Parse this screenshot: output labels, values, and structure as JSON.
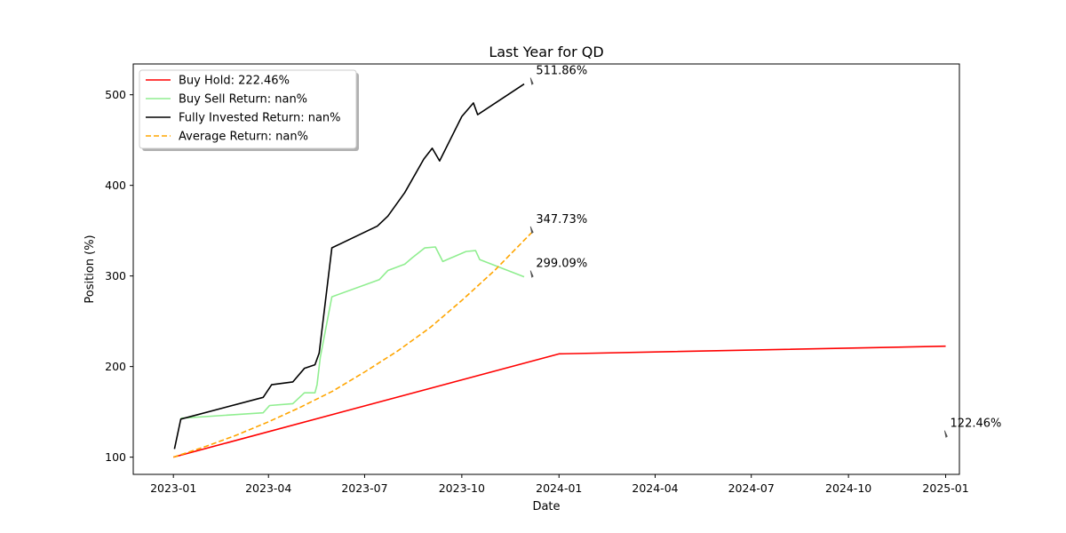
{
  "chart_data": {
    "type": "line",
    "title": "Last Year for QD",
    "xlabel": "Date",
    "ylabel": "Position (%)",
    "xlim": [
      "2022-11-24",
      "2025-01-14"
    ],
    "ylim": [
      81,
      534
    ],
    "x_ticks": [
      "2023-01",
      "2023-04",
      "2023-07",
      "2023-10",
      "2024-01",
      "2024-04",
      "2024-07",
      "2024-10",
      "2025-01"
    ],
    "y_ticks": [
      100,
      200,
      300,
      400,
      500
    ],
    "grid": false,
    "legend": {
      "placement": "top-left",
      "shadow": true
    },
    "series": [
      {
        "name": "Buy Hold: 222.46%",
        "color": "#ff0000",
        "dash": "solid",
        "points": [
          [
            "2023-01-01",
            100
          ],
          [
            "2024-01-01",
            214
          ],
          [
            "2025-01-01",
            222.46
          ]
        ]
      },
      {
        "name": "Buy Sell Return: nan%",
        "color": "#90ee90",
        "dash": "solid",
        "points": [
          [
            "2023-01-08",
            143
          ],
          [
            "2023-03-27",
            149
          ],
          [
            "2023-04-02",
            157
          ],
          [
            "2023-04-24",
            159
          ],
          [
            "2023-05-05",
            171
          ],
          [
            "2023-05-15",
            171
          ],
          [
            "2023-05-17",
            180
          ],
          [
            "2023-05-20",
            210
          ],
          [
            "2023-05-31",
            277
          ],
          [
            "2023-07-15",
            296
          ],
          [
            "2023-07-23",
            306
          ],
          [
            "2023-08-08",
            313
          ],
          [
            "2023-08-15",
            320
          ],
          [
            "2023-08-27",
            331
          ],
          [
            "2023-09-06",
            332
          ],
          [
            "2023-09-13",
            316
          ],
          [
            "2023-10-05",
            327
          ],
          [
            "2023-10-14",
            328
          ],
          [
            "2023-10-18",
            318
          ],
          [
            "2023-11-29",
            299.09
          ]
        ]
      },
      {
        "name": "Fully Invested Return: nan%",
        "color": "#000000",
        "dash": "solid",
        "points": [
          [
            "2023-01-02",
            109
          ],
          [
            "2023-01-08",
            142
          ],
          [
            "2023-03-27",
            166
          ],
          [
            "2023-04-04",
            180
          ],
          [
            "2023-04-24",
            183
          ],
          [
            "2023-05-05",
            198
          ],
          [
            "2023-05-15",
            202
          ],
          [
            "2023-05-19",
            215
          ],
          [
            "2023-05-31",
            331
          ],
          [
            "2023-07-13",
            355
          ],
          [
            "2023-07-23",
            366
          ],
          [
            "2023-08-08",
            392
          ],
          [
            "2023-08-26",
            429
          ],
          [
            "2023-09-03",
            441
          ],
          [
            "2023-09-10",
            427
          ],
          [
            "2023-10-01",
            476
          ],
          [
            "2023-10-12",
            491
          ],
          [
            "2023-10-16",
            478
          ],
          [
            "2023-11-29",
            511.86
          ]
        ]
      },
      {
        "name": "Average Return: nan%",
        "color": "#ffa500",
        "dash": "dashed",
        "points": [
          [
            "2023-01-01",
            100
          ],
          [
            "2023-02-01",
            112
          ],
          [
            "2023-03-01",
            124
          ],
          [
            "2023-04-01",
            139
          ],
          [
            "2023-05-01",
            155
          ],
          [
            "2023-06-01",
            173
          ],
          [
            "2023-07-01",
            194
          ],
          [
            "2023-08-01",
            217
          ],
          [
            "2023-09-01",
            243
          ],
          [
            "2023-10-01",
            273
          ],
          [
            "2023-11-01",
            306
          ],
          [
            "2023-12-06",
            347.73
          ]
        ]
      }
    ],
    "annotations": [
      {
        "text": "511.86%",
        "x": "2023-12-06",
        "y": 511.86
      },
      {
        "text": "347.73%",
        "x": "2023-12-06",
        "y": 347.73
      },
      {
        "text": "299.09%",
        "x": "2023-12-06",
        "y": 299.09
      },
      {
        "text": "122.46%",
        "x": "2025-01-01",
        "y": 122.46
      }
    ]
  }
}
